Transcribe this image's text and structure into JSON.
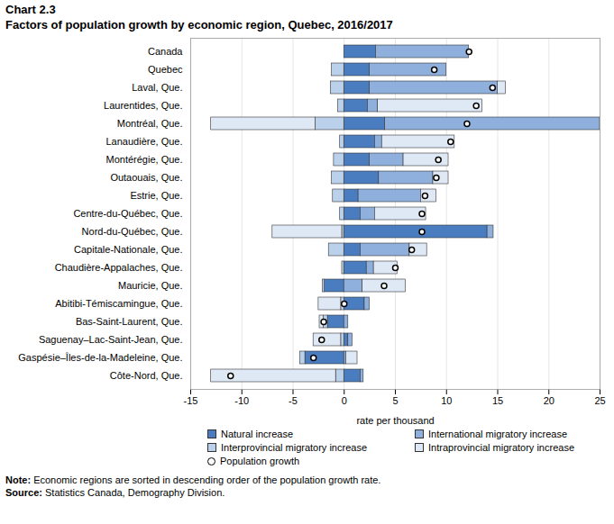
{
  "chart_data": {
    "type": "bar",
    "orientation": "horizontal",
    "stacked": true,
    "title": "Chart 2.3",
    "subtitle": "Factors of population growth by economic region, Quebec, 2016/2017",
    "x_label": "rate per thousand",
    "categories": [
      "Canada",
      "Quebec",
      "Laval, Que.",
      "Laurentides, Que.",
      "Montréal, Que.",
      "Lanaudière, Que.",
      "Montérégie, Que.",
      "Outaouais, Que.",
      "Estrie, Que.",
      "Centre-du-Québec, Que.",
      "Nord-du-Québec, Que.",
      "Capitale-Nationale, Que.",
      "Chaudière-Appalaches, Que.",
      "Mauricie, Que.",
      "Abitibi-Témiscamingue, Que.",
      "Bas-Saint-Laurent, Que.",
      "Saguenay–Lac-Saint-Jean, Que.",
      "Gaspésie–Îles-de-la-Madeleine, Que.",
      "Côte-Nord, Que."
    ],
    "series": [
      {
        "name": "Natural increase",
        "type": "bar",
        "color": "#4a7cc0",
        "values": [
          3.1,
          2.5,
          2.5,
          2.3,
          4.0,
          3.0,
          2.5,
          3.4,
          1.4,
          1.6,
          14.0,
          1.6,
          2.2,
          -1.9,
          2.0,
          -1.6,
          0.4,
          -3.8,
          1.6
        ]
      },
      {
        "name": "International migratory increase",
        "type": "bar",
        "color": "#8fb0dc",
        "values": [
          9.1,
          7.5,
          12.5,
          1.0,
          21.0,
          0.7,
          3.3,
          5.3,
          6.1,
          1.4,
          0.6,
          4.8,
          0.7,
          1.8,
          0.5,
          0.4,
          0.4,
          0.2,
          0.3
        ]
      },
      {
        "name": "Interprovincial migratory increase",
        "type": "bar",
        "color": "#bbd0ea",
        "values": [
          0,
          -1.2,
          -1.3,
          -0.6,
          -2.8,
          -0.4,
          -1.0,
          -1.2,
          -1.1,
          -0.4,
          -0.2,
          -1.5,
          -0.2,
          -0.2,
          -0.3,
          -0.4,
          -0.3,
          -0.5,
          -0.8
        ]
      },
      {
        "name": "Intraprovincial migratory increase",
        "type": "bar",
        "color": "#dfe9f5",
        "values": [
          0,
          0,
          0.8,
          10.2,
          -10.2,
          7.1,
          4.4,
          1.5,
          1.5,
          5.0,
          -6.8,
          1.7,
          2.3,
          4.2,
          -2.2,
          -0.4,
          -2.7,
          1.1,
          -12.2
        ]
      },
      {
        "name": "Population growth",
        "type": "scatter",
        "marker": "circle",
        "color": "#000000",
        "values": [
          12.2,
          8.8,
          14.5,
          12.9,
          12.0,
          10.4,
          9.2,
          9.0,
          7.9,
          7.6,
          7.6,
          6.6,
          5.0,
          3.9,
          0.0,
          -2.0,
          -2.2,
          -3.0,
          -11.1
        ]
      }
    ],
    "xlim": [
      -15,
      25
    ],
    "xticks": [
      -15,
      -10,
      -5,
      0,
      5,
      10,
      15,
      20,
      25
    ],
    "grid": true,
    "legend": "bottom",
    "notes": [
      {
        "label": "Note:",
        "text": "Economic regions are sorted in descending order of the population growth rate."
      },
      {
        "label": "Source:",
        "text": "Statistics Canada, Demography Division."
      }
    ]
  }
}
